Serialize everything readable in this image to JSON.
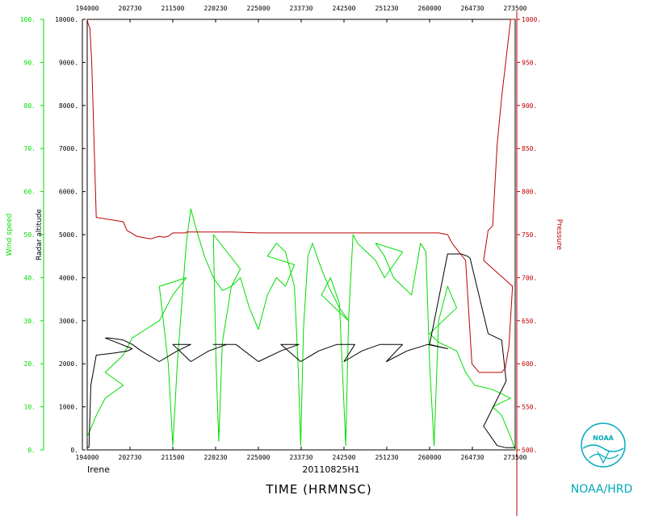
{
  "chart_data": {
    "type": "line",
    "storm": "Irene",
    "flight_id": "20110825H1",
    "xlabel": "TIME (HRMNSC)",
    "x_ticks": [
      "194000",
      "202730",
      "211500",
      "220230",
      "225000",
      "233730",
      "242500",
      "251230",
      "260000",
      "264730",
      "273500"
    ],
    "xlim": [
      194000,
      273500
    ],
    "grid": false,
    "axes": {
      "wind": {
        "label": "Wind speed",
        "ylim": [
          0,
          100
        ],
        "ticks": [
          "0.",
          "10.",
          "20.",
          "30.",
          "40.",
          "50.",
          "60.",
          "70.",
          "80.",
          "90.",
          "100."
        ],
        "color": "#00dd00"
      },
      "altitude": {
        "label": "Radar altitude",
        "ylim": [
          0,
          10000
        ],
        "ticks": [
          "0.",
          "1000.",
          "2000.",
          "3000.",
          "4000.",
          "5000.",
          "6000.",
          "7000.",
          "8000.",
          "9000.",
          "10000."
        ],
        "color": "#000000"
      },
      "pressure": {
        "label": "Pressure",
        "ylim": [
          500,
          1000
        ],
        "ticks": [
          "500.",
          "550.",
          "600.",
          "650.",
          "700.",
          "750.",
          "800.",
          "850.",
          "900.",
          "950.",
          "1000."
        ],
        "color": "#bb0000"
      }
    },
    "series": [
      {
        "name": "Wind speed",
        "axis": "wind",
        "color": "#00dd00",
        "x": [
          194000,
          195000,
          196000,
          198000,
          200000,
          202000,
          203000,
          204500,
          206000,
          207500,
          209000,
          210000,
          211000,
          211500,
          212000,
          213000,
          213500,
          214000,
          215000,
          216000,
          217000,
          218000,
          219000,
          220000,
          220300,
          220600,
          221000,
          222000,
          223000,
          224000,
          225000,
          226000,
          227000,
          228000,
          229000,
          230000,
          231000,
          232000,
          233000,
          233400,
          233700,
          234000,
          234500,
          235000,
          236000,
          237000,
          238000,
          239000,
          240000,
          241000,
          242000,
          242400,
          242700,
          243000,
          243500,
          244000,
          245000,
          246000,
          247000,
          248000,
          249000,
          250000,
          251000,
          252000,
          253000,
          254000,
          255000,
          255600,
          256000,
          256500,
          257000,
          258000,
          259000,
          260000,
          261000,
          262000,
          263000,
          264000,
          265000,
          267000,
          269000,
          271000,
          272000,
          273000,
          273500
        ],
        "y": [
          3,
          8,
          12,
          15,
          18,
          22,
          26,
          28,
          30,
          36,
          40,
          38,
          20,
          1,
          20,
          48,
          56,
          52,
          45,
          40,
          37,
          38,
          42,
          50,
          20,
          2,
          25,
          38,
          40,
          33,
          28,
          36,
          40,
          38,
          43,
          45,
          48,
          46,
          38,
          20,
          1,
          28,
          45,
          48,
          42,
          37,
          33,
          30,
          36,
          40,
          34,
          15,
          1,
          30,
          50,
          48,
          46,
          44,
          40,
          43,
          46,
          48,
          45,
          40,
          38,
          36,
          48,
          46,
          20,
          1,
          30,
          38,
          33,
          27,
          25,
          24,
          23,
          18,
          15,
          14,
          12,
          10,
          8,
          3,
          0
        ]
      },
      {
        "name": "Radar altitude",
        "axis": "altitude",
        "color": "#000000",
        "x": [
          194000,
          194200,
          194400,
          195000,
          197000,
          198500,
          199000,
          200000,
          200500,
          202000,
          203000,
          204000,
          206000,
          208000,
          209500,
          211500,
          213500,
          215500,
          217500,
          220000,
          222500,
          225000,
          227500,
          229500,
          231500,
          233700,
          235700,
          237700,
          239700,
          242500,
          244500,
          246500,
          249000,
          251200,
          253500,
          255800,
          258000,
          260000,
          262000,
          263500,
          264200,
          264500,
          266500,
          268000,
          268500,
          270000,
          271500,
          272500,
          273000,
          273500
        ],
        "y": [
          50,
          60,
          1500,
          2200,
          2250,
          2300,
          2350,
          2600,
          2600,
          2550,
          2450,
          2300,
          2050,
          2300,
          2450,
          2450,
          2050,
          2300,
          2450,
          2450,
          2450,
          2050,
          2300,
          2450,
          2450,
          2050,
          2300,
          2450,
          2450,
          2050,
          2300,
          2450,
          2450,
          2050,
          2300,
          2450,
          2350,
          2450,
          4550,
          4550,
          4500,
          4450,
          2700,
          2550,
          1600,
          550,
          100,
          50,
          50,
          50
        ]
      },
      {
        "name": "Pressure",
        "axis": "pressure",
        "color": "#bb0000",
        "x": [
          194000,
          194100,
          194300,
          194500,
          195000,
          198000,
          202000,
          202400,
          203500,
          205000,
          206000,
          206500,
          207000,
          207500,
          208000,
          209000,
          213000,
          218000,
          225000,
          230000,
          233700,
          238000,
          242000,
          245000,
          249000,
          255000,
          261000,
          262000,
          262500,
          264000,
          264700,
          265500,
          267000,
          268000,
          268400,
          268800,
          269200,
          270000,
          270500,
          271000,
          271500,
          272000,
          273000,
          273500
        ],
        "y": [
          1000,
          995,
          990,
          950,
          770,
          765,
          765,
          755,
          748,
          745,
          748,
          747,
          748,
          752,
          752,
          752,
          753,
          753,
          752,
          752,
          752,
          752,
          752,
          752,
          752,
          752,
          752,
          750,
          740,
          720,
          600,
          590,
          590,
          590,
          595,
          620,
          690,
          720,
          755,
          760,
          855,
          910,
          1000,
          1000
        ]
      }
    ]
  },
  "branding": {
    "logo_text": "NOAA",
    "org": "NOAA/HRD"
  }
}
